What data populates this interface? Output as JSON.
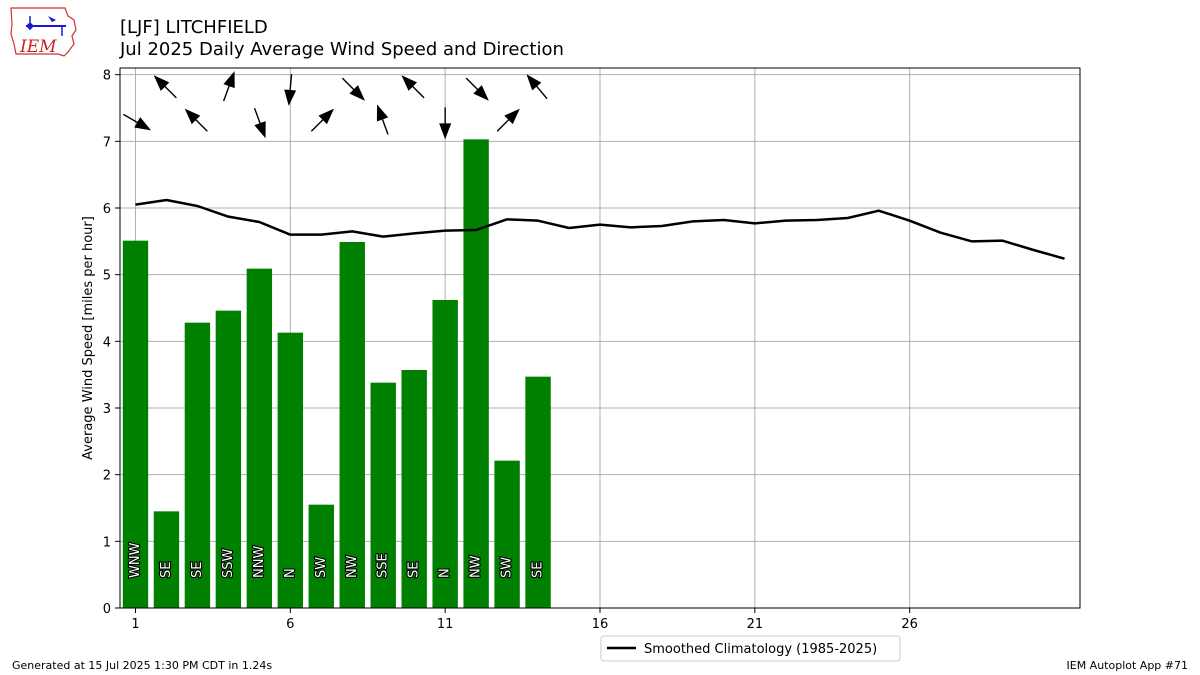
{
  "header": {
    "title_line1": "[LJF] LITCHFIELD",
    "title_line2": "Jul 2025 Daily Average Wind Speed and Direction"
  },
  "logo": {
    "text": "IEM"
  },
  "footer": {
    "left": "Generated at 15 Jul 2025 1:30 PM CDT in 1.24s",
    "right": "IEM Autoplot App #71"
  },
  "chart_data": {
    "type": "bar",
    "ylabel": "Average Wind Speed [miles per hour]",
    "xlabel": "",
    "xlim": [
      0.5,
      31.5
    ],
    "ylim": [
      0,
      8.1
    ],
    "xticks": [
      1,
      6,
      11,
      16,
      21,
      26
    ],
    "yticks": [
      0,
      1,
      2,
      3,
      4,
      5,
      6,
      7,
      8
    ],
    "grid": true,
    "legend": {
      "position": "bottom-center",
      "entries": [
        "Smoothed Climatology (1985-2025)"
      ]
    },
    "colors": {
      "bars": "#008000",
      "climatology": "#000000",
      "grid": "#b0b0b0"
    },
    "days": [
      1,
      2,
      3,
      4,
      5,
      6,
      7,
      8,
      9,
      10,
      11,
      12,
      13,
      14
    ],
    "speed": [
      5.51,
      1.45,
      4.28,
      4.46,
      5.09,
      4.13,
      1.55,
      5.49,
      3.38,
      3.57,
      4.62,
      7.03,
      2.21,
      3.47
    ],
    "direction_label": [
      "WNW",
      "SE",
      "SE",
      "SSW",
      "NNW",
      "N",
      "SW",
      "NW",
      "SSE",
      "SE",
      "N",
      "NW",
      "SW",
      "SE"
    ],
    "direction_deg": [
      300,
      135,
      135,
      200,
      340,
      5,
      225,
      315,
      160,
      135,
      0,
      315,
      225,
      140
    ],
    "climatology": {
      "name": "Smoothed Climatology (1985-2025)",
      "x": [
        1,
        2,
        3,
        4,
        5,
        6,
        7,
        8,
        9,
        10,
        11,
        12,
        13,
        14,
        15,
        16,
        17,
        18,
        19,
        20,
        21,
        22,
        23,
        24,
        25,
        26,
        27,
        28,
        29,
        30,
        31
      ],
      "y": [
        6.05,
        6.12,
        6.03,
        5.87,
        5.79,
        5.6,
        5.6,
        5.65,
        5.57,
        5.62,
        5.66,
        5.67,
        5.83,
        5.81,
        5.7,
        5.75,
        5.71,
        5.73,
        5.8,
        5.82,
        5.77,
        5.81,
        5.82,
        5.85,
        5.96,
        5.81,
        5.63,
        5.5,
        5.51,
        5.37,
        5.24
      ]
    }
  }
}
